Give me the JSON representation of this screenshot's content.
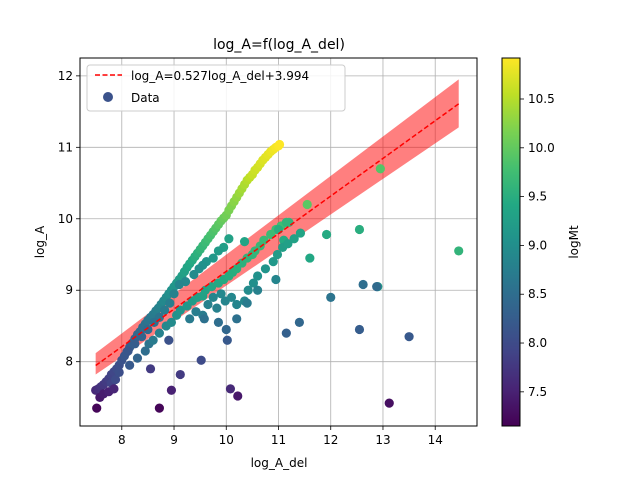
{
  "chart_data": {
    "type": "scatter",
    "title": "log_A=f(log_A_del)",
    "xlabel": "log_A_del",
    "ylabel": "log_A",
    "xlim": [
      7.2,
      14.8
    ],
    "ylim": [
      7.1,
      12.25
    ],
    "xticks": [
      8,
      9,
      10,
      11,
      12,
      13,
      14
    ],
    "yticks": [
      8,
      9,
      10,
      11,
      12
    ],
    "grid": true,
    "legend": {
      "placement": "top-left",
      "entries": [
        {
          "label": "log_A=0.527log_A_del+3.994",
          "kind": "dashed-line",
          "color": "#ff0000"
        },
        {
          "label": "Data",
          "kind": "marker",
          "color": "#3b528b"
        }
      ]
    },
    "fit_line": {
      "slope": 0.527,
      "intercept": 3.994,
      "x_range": [
        7.5,
        14.45
      ],
      "color": "#ff0000"
    },
    "confidence_band": {
      "x": [
        7.5,
        14.45
      ],
      "lower": [
        7.82,
        11.28
      ],
      "upper": [
        8.12,
        11.95
      ],
      "color": "#ff0000",
      "opacity": 0.5
    },
    "colorbar": {
      "label": "logMt",
      "colormap": "viridis",
      "range": [
        7.15,
        10.92
      ],
      "ticks": [
        7.5,
        8.0,
        8.5,
        9.0,
        9.5,
        10.0,
        10.5
      ]
    },
    "series": [
      {
        "name": "Data",
        "x": [
          7.5,
          7.55,
          7.6,
          7.65,
          7.7,
          7.75,
          7.8,
          7.85,
          7.9,
          7.95,
          8.0,
          8.05,
          8.1,
          8.15,
          8.2,
          8.25,
          8.3,
          8.35,
          8.4,
          8.45,
          8.5,
          8.55,
          8.6,
          8.65,
          8.7,
          8.75,
          8.8,
          8.85,
          8.9,
          8.95,
          9.0,
          9.05,
          9.1,
          9.15,
          9.2,
          9.25,
          9.3,
          9.35,
          9.4,
          9.45,
          9.5,
          9.55,
          9.6,
          9.65,
          9.7,
          9.75,
          9.8,
          9.85,
          9.9,
          9.95,
          10.0,
          10.05,
          10.1,
          10.15,
          10.2,
          10.25,
          10.3,
          10.35,
          10.4,
          10.45,
          10.5,
          10.55,
          10.6,
          10.65,
          10.7,
          10.75,
          10.8,
          10.85,
          10.9,
          10.95,
          11.0,
          11.02,
          7.62,
          7.8,
          7.88,
          7.95,
          8.15,
          8.3,
          8.45,
          8.52,
          8.6,
          8.72,
          8.85,
          8.95,
          9.05,
          9.12,
          9.25,
          9.35,
          9.45,
          9.55,
          9.6,
          9.72,
          9.85,
          9.95,
          10.05,
          10.12,
          10.2,
          10.3,
          10.4,
          10.5,
          10.55,
          10.65,
          10.72,
          10.85,
          10.95,
          11.05,
          11.15,
          11.1,
          9.3,
          9.42,
          9.55,
          9.65,
          9.75,
          9.82,
          9.9,
          9.98,
          10.1,
          10.2,
          10.35,
          10.42,
          10.52,
          10.6,
          10.75,
          10.9,
          10.98,
          11.08,
          11.18,
          11.3,
          11.42,
          11.6,
          11.92,
          12.55,
          12.9,
          14.45,
          12.95,
          11.55,
          11.2,
          11.0,
          10.35,
          10.05,
          9.95,
          9.85,
          9.75,
          9.62,
          9.55,
          9.48,
          9.38,
          9.22,
          9.1,
          9.0,
          8.92,
          8.82,
          8.72,
          8.62,
          8.5,
          8.38,
          8.25,
          8.12,
          9.58,
          9.85,
          10.0,
          10.2,
          10.4,
          10.6,
          10.95,
          11.15,
          11.4,
          12.0,
          12.55,
          12.62,
          12.88,
          13.5,
          13.12,
          8.72,
          8.95,
          9.12,
          9.52,
          10.02,
          10.08,
          10.22,
          7.52,
          7.58,
          7.65,
          7.75,
          7.85,
          8.55,
          8.9
        ],
        "y": [
          7.6,
          7.62,
          7.65,
          7.68,
          7.72,
          7.76,
          7.82,
          7.86,
          7.9,
          7.95,
          8.02,
          8.08,
          8.14,
          8.2,
          8.26,
          8.32,
          8.38,
          8.42,
          8.48,
          8.53,
          8.58,
          8.62,
          8.66,
          8.71,
          8.75,
          8.8,
          8.85,
          8.9,
          8.95,
          9.0,
          9.05,
          9.1,
          9.15,
          9.2,
          9.26,
          9.32,
          9.37,
          9.42,
          9.47,
          9.52,
          9.57,
          9.62,
          9.67,
          9.72,
          9.77,
          9.82,
          9.87,
          9.92,
          9.97,
          10.01,
          10.05,
          10.12,
          10.18,
          10.24,
          10.3,
          10.36,
          10.42,
          10.48,
          10.54,
          10.58,
          10.62,
          10.68,
          10.72,
          10.77,
          10.82,
          10.86,
          10.9,
          10.94,
          10.97,
          11.0,
          11.02,
          11.04,
          7.55,
          7.7,
          7.75,
          7.85,
          7.95,
          8.05,
          8.15,
          8.25,
          8.3,
          8.4,
          8.5,
          8.55,
          8.65,
          8.72,
          8.78,
          8.85,
          8.9,
          8.92,
          9.0,
          9.05,
          9.1,
          9.15,
          9.2,
          9.25,
          9.3,
          9.38,
          9.45,
          9.5,
          9.55,
          9.62,
          9.7,
          9.78,
          9.85,
          9.9,
          9.95,
          9.7,
          8.6,
          8.7,
          8.65,
          8.8,
          8.9,
          8.75,
          8.95,
          8.85,
          8.9,
          8.8,
          8.85,
          9.0,
          9.1,
          9.2,
          9.3,
          9.4,
          9.5,
          9.6,
          9.65,
          9.72,
          9.8,
          9.45,
          9.78,
          9.85,
          9.05,
          9.55,
          10.7,
          10.2,
          9.95,
          9.85,
          9.68,
          9.72,
          9.6,
          9.55,
          9.45,
          9.4,
          9.35,
          9.3,
          9.22,
          9.12,
          9.08,
          8.95,
          8.82,
          8.72,
          8.62,
          8.55,
          8.45,
          8.35,
          8.25,
          8.15,
          8.6,
          8.55,
          8.45,
          8.6,
          8.82,
          9.0,
          9.15,
          8.4,
          8.55,
          8.9,
          8.45,
          9.08,
          9.05,
          8.35,
          7.42,
          7.35,
          7.6,
          7.82,
          8.02,
          8.3,
          7.62,
          7.52,
          7.35,
          7.5,
          7.55,
          7.58,
          7.62,
          7.9,
          8.3
        ],
        "logMt": [
          7.6,
          7.65,
          7.7,
          7.75,
          7.8,
          7.85,
          7.9,
          7.95,
          8.0,
          8.05,
          8.1,
          8.15,
          8.2,
          8.25,
          8.3,
          8.35,
          8.4,
          8.45,
          8.5,
          8.55,
          8.6,
          8.65,
          8.7,
          8.75,
          8.8,
          8.85,
          8.9,
          8.95,
          9.0,
          9.05,
          9.1,
          9.15,
          9.2,
          9.25,
          9.3,
          9.35,
          9.4,
          9.45,
          9.5,
          9.55,
          9.6,
          9.65,
          9.7,
          9.75,
          9.8,
          9.85,
          9.9,
          9.95,
          10.0,
          10.05,
          10.1,
          10.15,
          10.2,
          10.25,
          10.3,
          10.35,
          10.4,
          10.45,
          10.5,
          10.55,
          10.6,
          10.63,
          10.66,
          10.69,
          10.72,
          10.75,
          10.78,
          10.81,
          10.84,
          10.87,
          10.9,
          10.92,
          7.7,
          7.9,
          8.0,
          8.05,
          8.2,
          8.35,
          8.5,
          8.6,
          8.7,
          8.8,
          8.9,
          8.95,
          9.05,
          9.1,
          9.15,
          9.2,
          9.25,
          9.3,
          9.32,
          9.38,
          9.42,
          9.45,
          9.48,
          9.5,
          9.52,
          9.55,
          9.58,
          9.6,
          9.62,
          9.65,
          9.68,
          9.7,
          9.72,
          9.75,
          9.6,
          9.45,
          8.7,
          8.75,
          8.72,
          8.8,
          8.85,
          8.8,
          8.9,
          8.85,
          8.88,
          8.85,
          8.88,
          8.95,
          9.0,
          9.05,
          9.1,
          9.15,
          9.2,
          9.25,
          9.28,
          9.3,
          9.35,
          9.4,
          9.45,
          9.5,
          9.2,
          9.6,
          9.9,
          9.95,
          9.6,
          9.5,
          9.35,
          9.3,
          9.25,
          9.2,
          9.15,
          9.1,
          9.05,
          9.0,
          8.95,
          8.9,
          8.85,
          8.8,
          8.75,
          8.7,
          8.6,
          8.55,
          8.45,
          8.35,
          8.25,
          8.15,
          8.55,
          8.5,
          8.4,
          8.55,
          8.7,
          8.8,
          8.85,
          8.3,
          8.4,
          8.6,
          8.25,
          8.5,
          8.45,
          8.2,
          7.3,
          7.2,
          7.5,
          7.8,
          8.0,
          8.2,
          7.6,
          7.4,
          7.2,
          7.4,
          7.45,
          7.5,
          7.55,
          7.8,
          8.1
        ]
      }
    ]
  }
}
